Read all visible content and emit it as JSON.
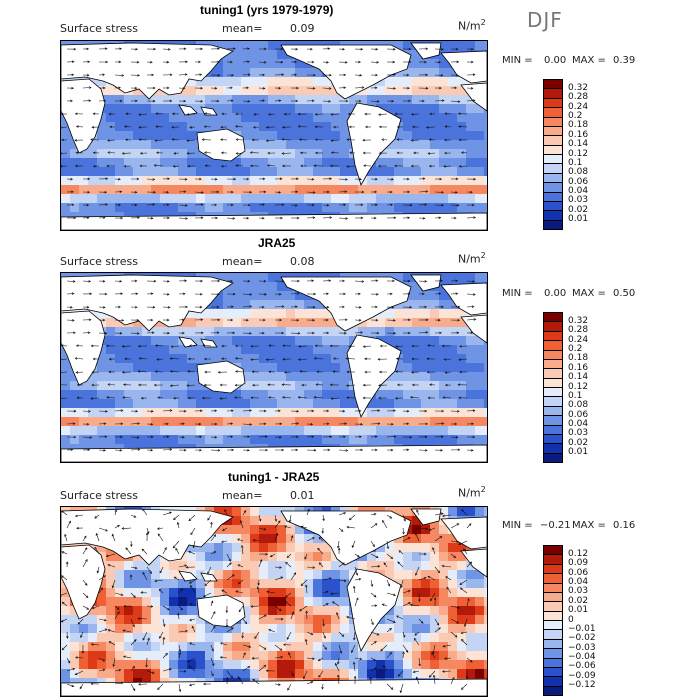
{
  "season": "DJF",
  "units": "N/m",
  "units_exp": "2",
  "panels": [
    {
      "title": "tuning1 (yrs 1979-1979)",
      "variable": "Surface stress",
      "mean_label": "mean=",
      "mean": "0.09",
      "min_label": "MIN =",
      "min": "0.00",
      "max_label": "MAX =",
      "max": "0.39",
      "colorbar": {
        "labels": [
          "0.32",
          "0.28",
          "0.24",
          "0.2",
          "0.18",
          "0.16",
          "0.14",
          "0.12",
          "0.1",
          "0.08",
          "0.06",
          "0.04",
          "0.03",
          "0.02",
          "0.01"
        ],
        "colors": [
          "#7a0000",
          "#b21a0c",
          "#dd3a18",
          "#ef6034",
          "#f58860",
          "#f9ac8c",
          "#fbcab4",
          "#fbe3d6",
          "#e5ecfa",
          "#c3d4f5",
          "#9ab6ee",
          "#6f94e6",
          "#4a74dc",
          "#2a52cc",
          "#1231ad",
          "#0a1a7e"
        ]
      }
    },
    {
      "title": "JRA25",
      "variable": "Surface stress",
      "mean_label": "mean=",
      "mean": "0.08",
      "min_label": "MIN =",
      "min": "0.00",
      "max_label": "MAX =",
      "max": "0.50",
      "colorbar": {
        "labels": [
          "0.32",
          "0.28",
          "0.24",
          "0.2",
          "0.18",
          "0.16",
          "0.14",
          "0.12",
          "0.1",
          "0.08",
          "0.06",
          "0.04",
          "0.03",
          "0.02",
          "0.01"
        ],
        "colors": [
          "#7a0000",
          "#b21a0c",
          "#dd3a18",
          "#ef6034",
          "#f58860",
          "#f9ac8c",
          "#fbcab4",
          "#fbe3d6",
          "#e5ecfa",
          "#c3d4f5",
          "#9ab6ee",
          "#6f94e6",
          "#4a74dc",
          "#2a52cc",
          "#1231ad",
          "#0a1a7e"
        ]
      }
    },
    {
      "title": "tuning1 - JRA25",
      "variable": "Surface stress",
      "mean_label": "mean=",
      "mean": "0.01",
      "min_label": "MIN =",
      "min": "−0.21",
      "max_label": "MAX =",
      "max": "0.16",
      "colorbar": {
        "labels": [
          "0.12",
          "0.09",
          "0.06",
          "0.04",
          "0.03",
          "0.02",
          "0.01",
          "0",
          "−0.01",
          "−0.02",
          "−0.03",
          "−0.04",
          "−0.06",
          "−0.09",
          "−0.12"
        ],
        "colors": [
          "#7a0000",
          "#b21a0c",
          "#dd3a18",
          "#ef6034",
          "#f58860",
          "#f9ac8c",
          "#fbcab4",
          "#fbe3d6",
          "#e5ecfa",
          "#c3d4f5",
          "#9ab6ee",
          "#6f94e6",
          "#4a74dc",
          "#2a52cc",
          "#1231ad",
          "#0a1a7e"
        ]
      }
    }
  ],
  "palette": {
    "land": "#ffffff",
    "coast": "#000000",
    "arrow": "#111111"
  }
}
